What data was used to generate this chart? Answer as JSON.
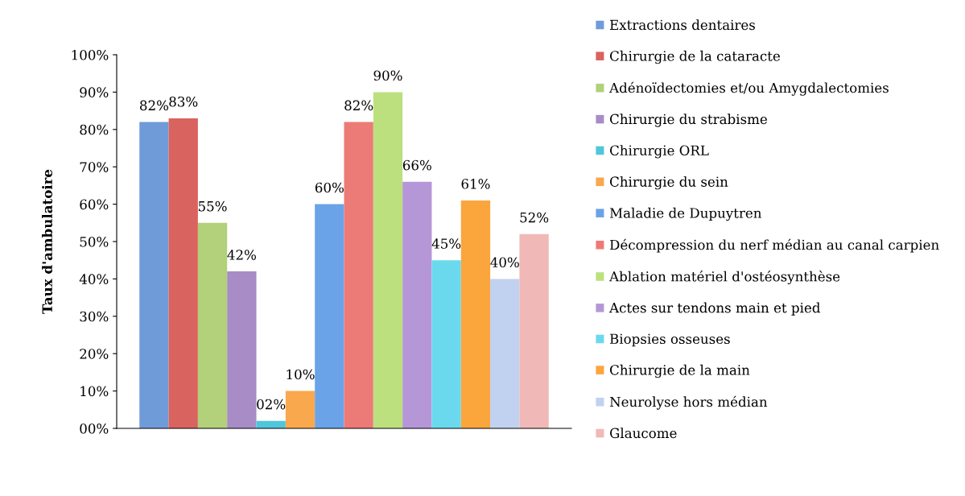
{
  "chart_data": {
    "type": "bar",
    "ylabel": "Taux d'ambulatoire",
    "categories": [
      null
    ],
    "ylim": [
      0,
      100
    ],
    "yticks": [
      {
        "value": 0,
        "label": "00%"
      },
      {
        "value": 10,
        "label": "10%"
      },
      {
        "value": 20,
        "label": "20%"
      },
      {
        "value": 30,
        "label": "30%"
      },
      {
        "value": 40,
        "label": "40%"
      },
      {
        "value": 50,
        "label": "50%"
      },
      {
        "value": 60,
        "label": "60%"
      },
      {
        "value": 70,
        "label": "70%"
      },
      {
        "value": 80,
        "label": "80%"
      },
      {
        "value": 90,
        "label": "90%"
      },
      {
        "value": 100,
        "label": "100%"
      }
    ],
    "grid": false,
    "legend": "right",
    "series": [
      {
        "name": "Extractions dentaires",
        "color": "#6f9bd8",
        "values": [
          82
        ],
        "value_labels": [
          "82%"
        ]
      },
      {
        "name": "Chirurgie de la cataracte",
        "color": "#d9635e",
        "values": [
          83
        ],
        "value_labels": [
          "83%"
        ]
      },
      {
        "name": "Adénoïdectomies et/ou Amygdalectomies",
        "color": "#b3d07a",
        "values": [
          55
        ],
        "value_labels": [
          "55%"
        ]
      },
      {
        "name": "Chirurgie du strabisme",
        "color": "#a78cc6",
        "values": [
          42
        ],
        "value_labels": [
          "42%"
        ]
      },
      {
        "name": "Chirurgie ORL",
        "color": "#4fc6dc",
        "values": [
          2
        ],
        "value_labels": [
          "02%"
        ]
      },
      {
        "name": "Chirurgie du sein",
        "color": "#f9a84d",
        "values": [
          10
        ],
        "value_labels": [
          "10%"
        ]
      },
      {
        "name": "Maladie de Dupuytren",
        "color": "#6aa3e8",
        "values": [
          60
        ],
        "value_labels": [
          "60%"
        ]
      },
      {
        "name": "Décompression du nerf médian au canal carpien",
        "color": "#ec7a76",
        "values": [
          82
        ],
        "value_labels": [
          "82%"
        ]
      },
      {
        "name": "Ablation matériel d'ostéosynthèse",
        "color": "#bde07e",
        "values": [
          90
        ],
        "value_labels": [
          "90%"
        ]
      },
      {
        "name": "Actes sur tendons main et pied",
        "color": "#b597d8",
        "values": [
          66
        ],
        "value_labels": [
          "66%"
        ]
      },
      {
        "name": "Biopsies osseuses",
        "color": "#6ad9ee",
        "values": [
          45
        ],
        "value_labels": [
          "45%"
        ]
      },
      {
        "name": "Chirurgie de la main",
        "color": "#fba53d",
        "values": [
          61
        ],
        "value_labels": [
          "61%"
        ]
      },
      {
        "name": "Neurolyse hors médian",
        "color": "#c0d2ef",
        "values": [
          40
        ],
        "value_labels": [
          "40%"
        ]
      },
      {
        "name": "Glaucome",
        "color": "#f0b8b6",
        "values": [
          52
        ],
        "value_labels": [
          "52%"
        ]
      }
    ]
  }
}
